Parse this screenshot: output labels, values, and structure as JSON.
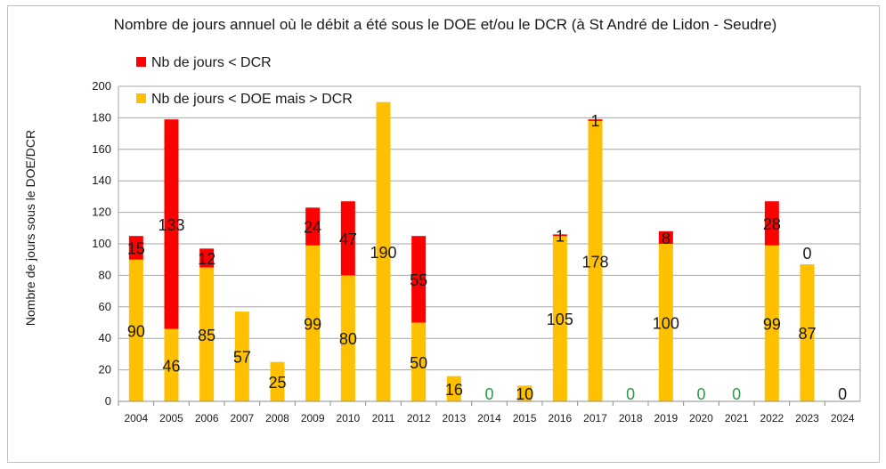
{
  "chart_data": {
    "type": "bar",
    "stacked": true,
    "title": "Nombre de jours annuel où le débit a été sous le DOE et/ou le DCR (à St André de Lidon - Seudre)",
    "ylabel": "Nombre de jours sous le DOE/DCR",
    "xlabel": "",
    "ylim": [
      0,
      200
    ],
    "yticks": [
      0,
      20,
      40,
      60,
      80,
      100,
      120,
      140,
      160,
      180,
      200
    ],
    "grid": true,
    "legend_position": "top-left",
    "categories": [
      "2004",
      "2005",
      "2006",
      "2007",
      "2008",
      "2009",
      "2010",
      "2011",
      "2012",
      "2013",
      "2014",
      "2015",
      "2016",
      "2017",
      "2018",
      "2019",
      "2020",
      "2021",
      "2022",
      "2023",
      "2024"
    ],
    "series": [
      {
        "name": "Nb de jours < DOE mais > DCR",
        "color": "#ffc000",
        "values": [
          90,
          46,
          85,
          57,
          25,
          99,
          80,
          190,
          50,
          16,
          0,
          10,
          105,
          178,
          0,
          100,
          0,
          0,
          99,
          87,
          0
        ],
        "labels": [
          "90",
          "46",
          "85",
          "57",
          "25",
          "99",
          "80",
          "190",
          "50",
          "16",
          "0",
          "10",
          "105",
          "178",
          "0",
          "100",
          "0",
          "0",
          "99",
          "87",
          "0"
        ]
      },
      {
        "name": "Nb de jours < DCR",
        "color": "#ff0000",
        "values": [
          15,
          133,
          12,
          0,
          0,
          24,
          47,
          0,
          55,
          0,
          0,
          0,
          1,
          1,
          0,
          8,
          0,
          0,
          28,
          0,
          0
        ],
        "labels": [
          "15",
          "133",
          "12",
          "",
          "",
          "24",
          "47",
          "",
          "55",
          "",
          "",
          "",
          "1",
          "1",
          "",
          "8",
          "",
          "",
          "28",
          "0",
          ""
        ]
      }
    ],
    "zero_label_color": "#2e9a4a"
  }
}
